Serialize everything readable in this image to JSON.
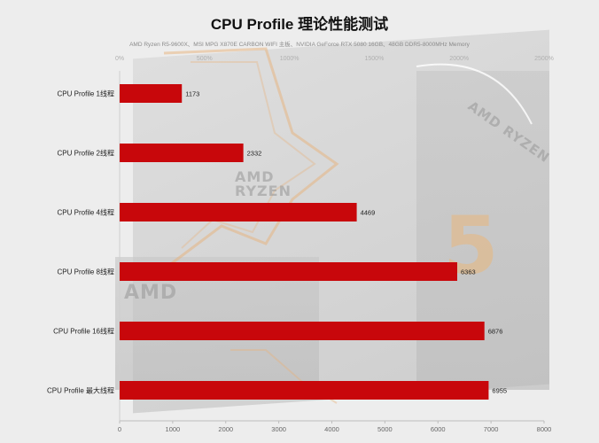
{
  "chart_data": {
    "type": "bar",
    "orientation": "horizontal",
    "title": "CPU Profile 理论性能测试",
    "subtitle": "AMD Ryzen R5-9600X、MSI MPG X870E CARBON WIFI 主板、NVIDIA GeForce RTX 5080 16GB、48GB DDR5-8000MHz Memory",
    "categories": [
      "CPU Profile 1线程",
      "CPU Profile 2线程",
      "CPU Profile 4线程",
      "CPU Profile 8线程",
      "CPU Profile 16线程",
      "CPU Profile 最大线程"
    ],
    "values": [
      1173,
      2332,
      4469,
      6363,
      6876,
      6955
    ],
    "xlim": [
      0,
      8000
    ],
    "x_ticks": [
      "0",
      "1000",
      "2000",
      "3000",
      "4000",
      "5000",
      "6000",
      "7000",
      "8000"
    ],
    "secondary_ticks": [
      "0%",
      "500%",
      "1000%",
      "1500%",
      "2000%",
      "2500%"
    ],
    "bar_color": "#c8070b",
    "grid": false,
    "legend": "none"
  }
}
